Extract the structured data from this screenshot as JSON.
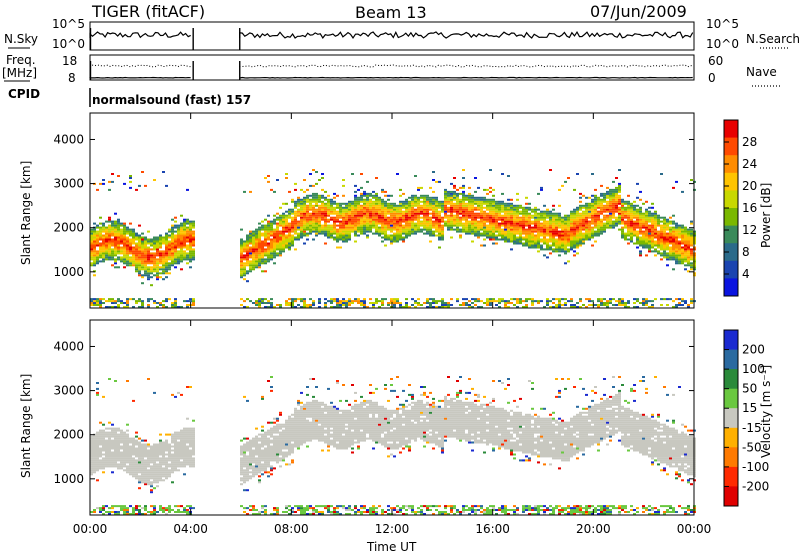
{
  "header": {
    "radar": "TIGER (fitACF)",
    "beam": "Beam 13",
    "date": "07/Jun/2009"
  },
  "panels": {
    "nsky_label": "N.Sky",
    "nsearch_label": "N.Search",
    "freq_label_1": "Freq.",
    "freq_label_2": "[MHz]",
    "nave_label": "Nave",
    "cpid_label": "CPID",
    "cpid_value": "normalsound (fast) 157",
    "nsky_ticks": [
      "10^5",
      "10^0"
    ],
    "nsearch_ticks": [
      "10^5",
      "10^0"
    ],
    "freq_ticks": [
      "18",
      "8"
    ],
    "nave_ticks": [
      "60",
      "0"
    ]
  },
  "colorbars": {
    "power": {
      "label": "Power [dB]",
      "ticks": [
        "28",
        "24",
        "20",
        "16",
        "12",
        "8",
        "4"
      ],
      "colors": [
        "#e80000",
        "#ff4a00",
        "#ff8c00",
        "#ffc400",
        "#c8d800",
        "#7ab800",
        "#3a8a5a",
        "#2a6a8a",
        "#1a44b0",
        "#0a14e0"
      ]
    },
    "velocity": {
      "label": "Velocity [m s⁻¹]",
      "ticks": [
        "200",
        "100",
        "50",
        "15",
        "-15",
        "-50",
        "-100",
        "-200"
      ],
      "colors": [
        "#1a2ad0",
        "#2a6aa0",
        "#2a8a3a",
        "#6ac840",
        "#c8c8c0",
        "#ffb000",
        "#ff7a00",
        "#ff2a00",
        "#e00000"
      ]
    }
  },
  "chart_data": [
    {
      "type": "heatmap",
      "title": "",
      "ylabel": "Slant Range [km]",
      "xlabel": "",
      "ylim": [
        180,
        4600
      ],
      "yticks": [
        1000,
        2000,
        3000,
        4000
      ],
      "xlim": [
        0,
        24
      ],
      "xticks": [
        0,
        4,
        8,
        12,
        16,
        20,
        24
      ],
      "xticklabels": [
        "00:00",
        "04:00",
        "08:00",
        "12:00",
        "16:00",
        "20:00",
        "00:00"
      ],
      "colorbar": "power",
      "data_gaps_hours": [
        [
          4.1,
          5.95
        ]
      ],
      "scatter_band_km": [
        [
          1100,
          2300,
          0,
          4.1
        ],
        [
          700,
          2400,
          6.0,
          8.0
        ],
        [
          1700,
          2700,
          8.0,
          16.0
        ],
        [
          1300,
          2700,
          16.0,
          24.0
        ]
      ]
    },
    {
      "type": "heatmap",
      "title": "",
      "ylabel": "Slant Range [km]",
      "xlabel": "Time UT",
      "ylim": [
        180,
        4600
      ],
      "yticks": [
        1000,
        2000,
        3000,
        4000
      ],
      "xlim": [
        0,
        24
      ],
      "xticks": [
        0,
        4,
        8,
        12,
        16,
        20,
        24
      ],
      "xticklabels": [
        "00:00",
        "04:00",
        "08:00",
        "12:00",
        "16:00",
        "20:00",
        "00:00"
      ],
      "colorbar": "velocity",
      "data_gaps_hours": [
        [
          4.1,
          5.95
        ]
      ]
    }
  ]
}
